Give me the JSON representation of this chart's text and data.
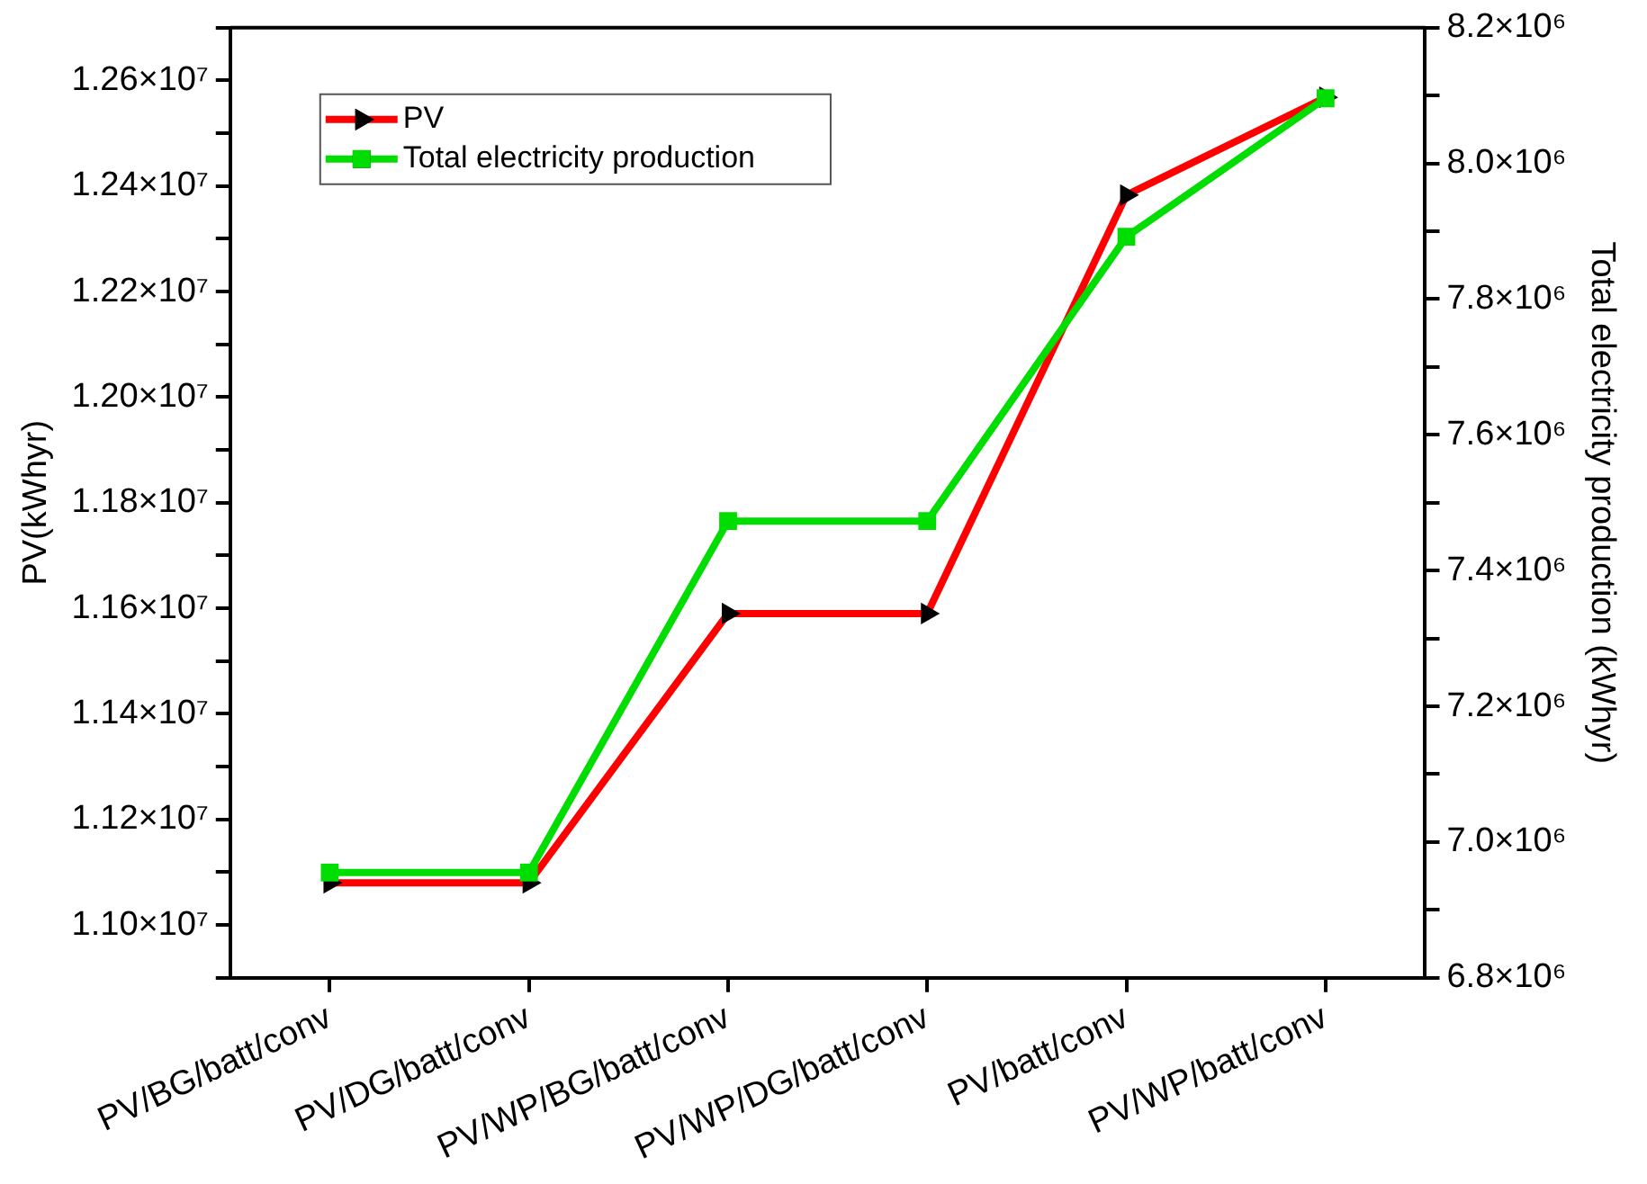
{
  "chart_data": {
    "type": "line",
    "ylabel": "PV(kWhyr)",
    "y2label": "Total electricity production (kWhyr)",
    "categories": [
      "PV/BG/batt/conv",
      "PV/DG/batt/conv",
      "PV/WP/BG/batt/conv",
      "PV/WP/DG/batt/conv",
      "PV/batt/conv",
      "PV/WP/batt/conv"
    ],
    "series": [
      {
        "name": "PV",
        "color": "#ff0000",
        "marker": "triangle",
        "values": [
          11080000,
          11080000,
          11590000,
          11590000,
          12383000,
          12568000
        ]
      },
      {
        "name": "Total electricity production",
        "color": "#00dd00",
        "marker": "square",
        "axis": "y2",
        "values": [
          6955000,
          6955000,
          7473000,
          7473000,
          7892000,
          8096000
        ]
      }
    ],
    "ylim": [
      10900000,
      12700000
    ],
    "yticks": [
      {
        "value": 10900000,
        "label": null
      },
      {
        "value": 11000000,
        "label": "1.10×10⁷"
      },
      {
        "value": 11100000,
        "label": null
      },
      {
        "value": 11200000,
        "label": "1.12×10⁷"
      },
      {
        "value": 11300000,
        "label": null
      },
      {
        "value": 11400000,
        "label": "1.14×10⁷"
      },
      {
        "value": 11500000,
        "label": null
      },
      {
        "value": 11600000,
        "label": "1.16×10⁷"
      },
      {
        "value": 11700000,
        "label": null
      },
      {
        "value": 11800000,
        "label": "1.18×10⁷"
      },
      {
        "value": 11900000,
        "label": null
      },
      {
        "value": 12000000,
        "label": "1.20×10⁷"
      },
      {
        "value": 12100000,
        "label": null
      },
      {
        "value": 12200000,
        "label": "1.22×10⁷"
      },
      {
        "value": 12300000,
        "label": null
      },
      {
        "value": 12400000,
        "label": "1.24×10⁷"
      },
      {
        "value": 12500000,
        "label": null
      },
      {
        "value": 12600000,
        "label": "1.26×10⁷"
      },
      {
        "value": 12700000,
        "label": null
      }
    ],
    "y2lim": [
      6800000,
      8200000
    ],
    "y2ticks": [
      {
        "value": 6800000,
        "label": "6.8×10⁶"
      },
      {
        "value": 6900000,
        "label": null
      },
      {
        "value": 7000000,
        "label": "7.0×10⁶"
      },
      {
        "value": 7100000,
        "label": null
      },
      {
        "value": 7200000,
        "label": "7.2×10⁶"
      },
      {
        "value": 7300000,
        "label": null
      },
      {
        "value": 7400000,
        "label": "7.4×10⁶"
      },
      {
        "value": 7500000,
        "label": null
      },
      {
        "value": 7600000,
        "label": "7.6×10⁶"
      },
      {
        "value": 7700000,
        "label": null
      },
      {
        "value": 7800000,
        "label": "7.8×10⁶"
      },
      {
        "value": 7900000,
        "label": null
      },
      {
        "value": 8000000,
        "label": "8.0×10⁶"
      },
      {
        "value": 8100000,
        "label": null
      },
      {
        "value": 8200000,
        "label": "8.2×10⁶"
      }
    ],
    "grid": false,
    "legend": "top left",
    "line_style": "solid"
  }
}
